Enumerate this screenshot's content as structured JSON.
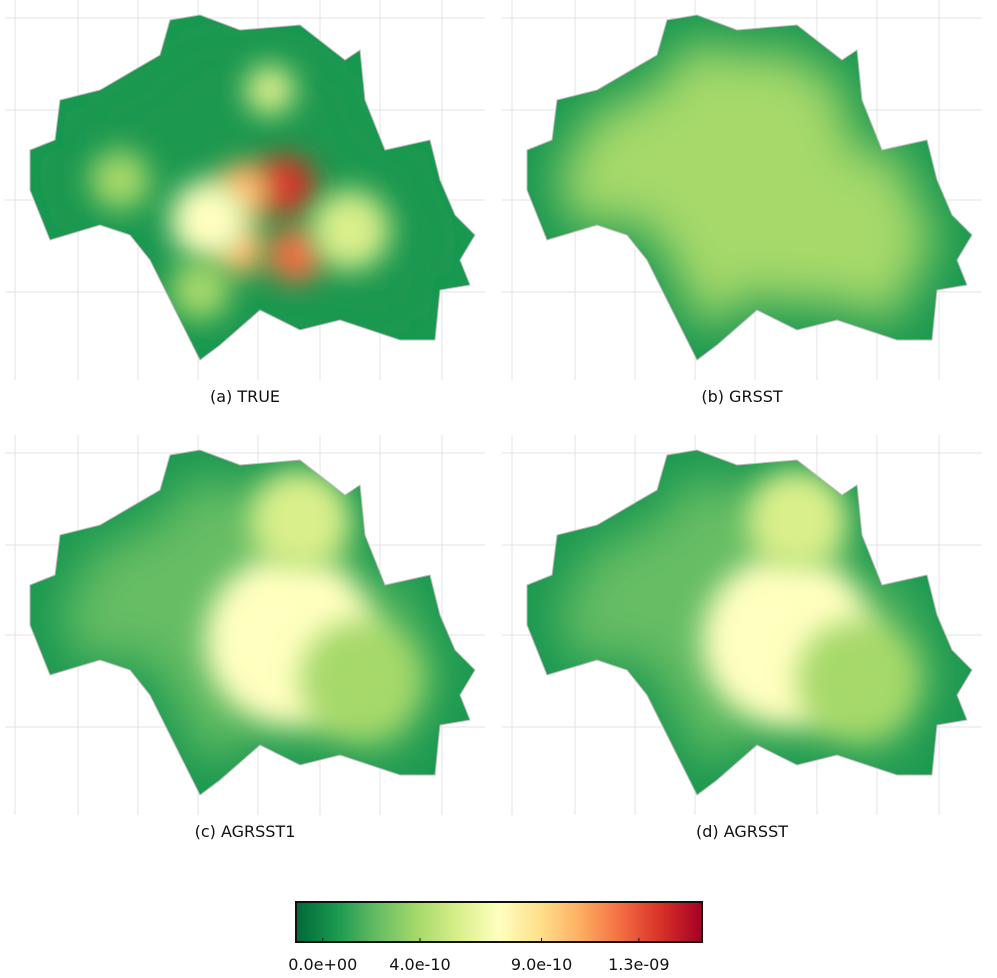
{
  "panels": [
    {
      "caption": "(a) TRUE"
    },
    {
      "caption": "(b) GRSST"
    },
    {
      "caption": "(c) AGRSST1"
    },
    {
      "caption": "(d) AGRSST"
    }
  ],
  "colorbar": {
    "lim": [
      -1.1e-10,
      1.56e-09
    ],
    "ticks": [
      {
        "value": 0,
        "label": "0.0e+00"
      },
      {
        "value": 4e-10,
        "label": "4.0e-10"
      },
      {
        "value": 9e-10,
        "label": "9.0e-10"
      },
      {
        "value": 1.3e-09,
        "label": "1.3e-09"
      }
    ],
    "colors": [
      "#006837",
      "#1a9850",
      "#66bd63",
      "#a6d96a",
      "#d9ef8b",
      "#ffffbf",
      "#fee08b",
      "#fdae61",
      "#f46d43",
      "#d73027",
      "#a50026"
    ]
  }
}
